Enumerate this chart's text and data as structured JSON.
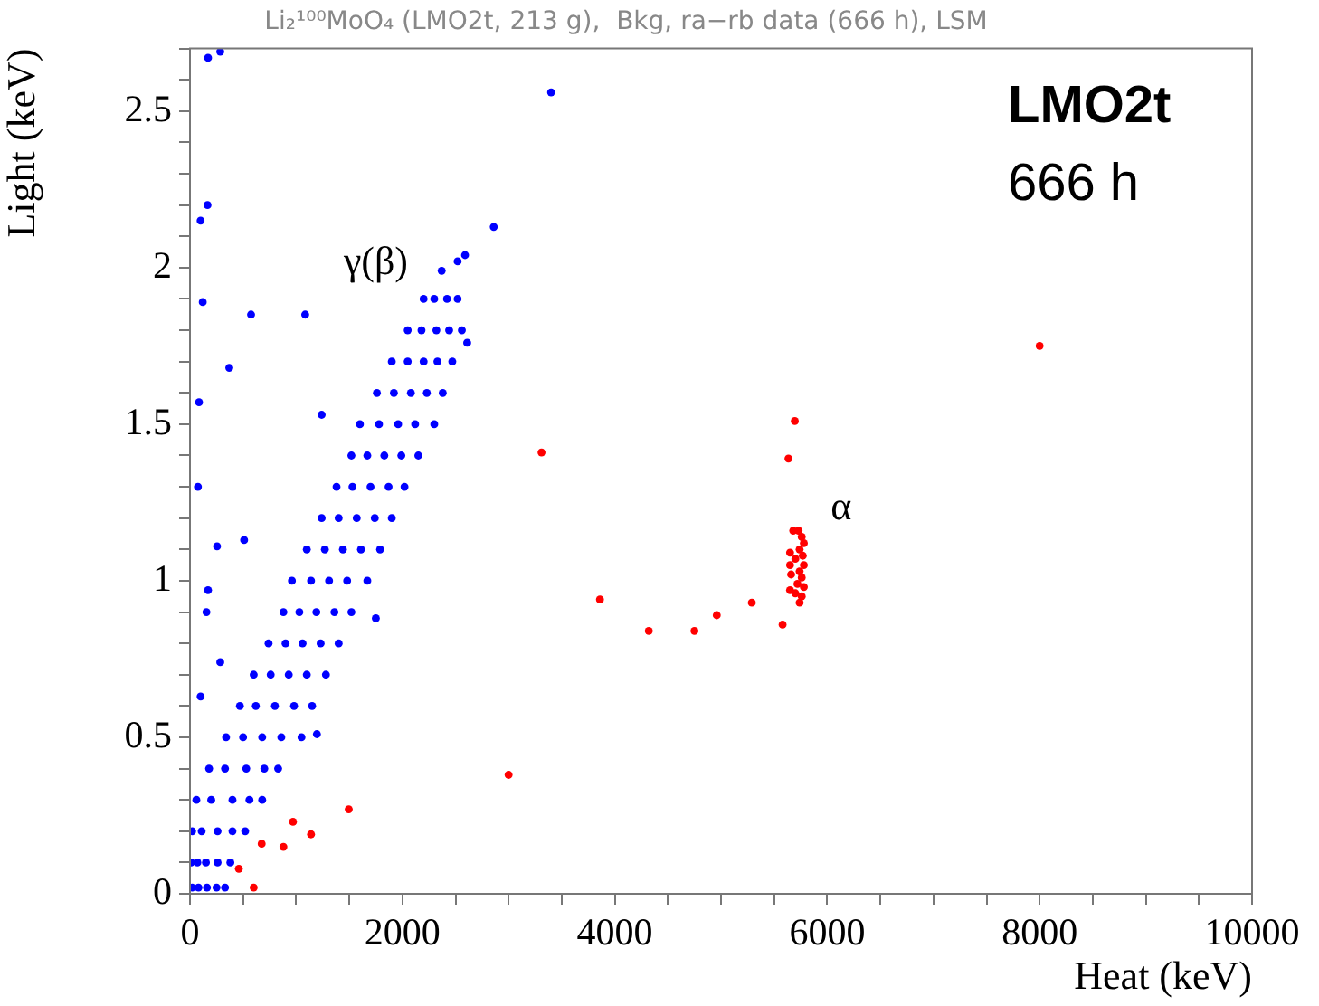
{
  "chart_data": {
    "type": "scatter",
    "title": "Li₂¹⁰⁰MoO₄ (LMO2t, 213 g),  Bkg, ra−rb data (666 h), LSM",
    "xlabel": "Heat (keV)",
    "ylabel": "Light (keV)",
    "xlim": [
      0,
      10000
    ],
    "ylim": [
      0,
      2.7
    ],
    "xticks": [
      0,
      {
        "value": 500,
        "label": null
      },
      {
        "value": 1000,
        "label": null
      },
      {
        "value": 1500,
        "label": null
      },
      2000,
      {
        "value": 2500,
        "label": null
      },
      {
        "value": 3000,
        "label": null
      },
      {
        "value": 3500,
        "label": null
      },
      4000,
      {
        "value": 4500,
        "label": null
      },
      {
        "value": 5000,
        "label": null
      },
      {
        "value": 5500,
        "label": null
      },
      6000,
      {
        "value": 6500,
        "label": null
      },
      {
        "value": 7000,
        "label": null
      },
      {
        "value": 7500,
        "label": null
      },
      8000,
      {
        "value": 8500,
        "label": null
      },
      {
        "value": 9000,
        "label": null
      },
      {
        "value": 9500,
        "label": null
      },
      10000
    ],
    "yticks": [
      0,
      {
        "value": 0.1,
        "label": null
      },
      {
        "value": 0.2,
        "label": null
      },
      {
        "value": 0.3,
        "label": null
      },
      {
        "value": 0.4,
        "label": null
      },
      0.5,
      {
        "value": 0.6,
        "label": null
      },
      {
        "value": 0.7,
        "label": null
      },
      {
        "value": 0.8,
        "label": null
      },
      {
        "value": 0.9,
        "label": null
      },
      1,
      {
        "value": 1.1,
        "label": null
      },
      {
        "value": 1.2,
        "label": null
      },
      {
        "value": 1.3,
        "label": null
      },
      {
        "value": 1.4,
        "label": null
      },
      1.5,
      {
        "value": 1.6,
        "label": null
      },
      {
        "value": 1.7,
        "label": null
      },
      {
        "value": 1.8,
        "label": null
      },
      {
        "value": 1.9,
        "label": null
      },
      2,
      {
        "value": 2.1,
        "label": null
      },
      {
        "value": 2.2,
        "label": null
      },
      {
        "value": 2.3,
        "label": null
      },
      {
        "value": 2.4,
        "label": null
      },
      2.5,
      {
        "value": 2.6,
        "label": null
      },
      {
        "value": 2.7,
        "label": null
      }
    ],
    "grid": false,
    "legend": false,
    "marker": "circle",
    "series": [
      {
        "color": "#0000ff",
        "x": [
          20,
          80,
          160,
          250,
          330,
          10,
          70,
          150,
          260,
          380,
          20,
          110,
          260,
          400,
          520,
          60,
          200,
          400,
          560,
          680,
          180,
          330,
          530,
          700,
          830,
          340,
          500,
          680,
          860,
          1050,
          470,
          620,
          800,
          980,
          1150,
          600,
          760,
          930,
          1100,
          1280,
          740,
          900,
          1060,
          1230,
          1400,
          880,
          1030,
          1190,
          1360,
          1520,
          960,
          1140,
          1310,
          1480,
          1670,
          1100,
          1270,
          1440,
          1610,
          1790,
          1240,
          1400,
          1570,
          1740,
          1900,
          1380,
          1530,
          1700,
          1870,
          2020,
          1520,
          1670,
          1830,
          1990,
          2150,
          1600,
          1780,
          1960,
          2120,
          2300,
          1760,
          1920,
          2080,
          2230,
          2380,
          1900,
          2050,
          2200,
          2330,
          2470,
          2050,
          2180,
          2320,
          2440,
          2560,
          2200,
          2300,
          2420,
          2520,
          2590,
          2520,
          2370,
          2610,
          170,
          285,
          3400,
          165,
          100,
          2860,
          120,
          575,
          1085,
          370,
          85,
          1240,
          75,
          255,
          510,
          170,
          155,
          1750,
          285,
          100,
          1195
        ],
        "values": [
          0.02,
          0.02,
          0.02,
          0.02,
          0.02,
          0.1,
          0.1,
          0.1,
          0.1,
          0.1,
          0.2,
          0.2,
          0.2,
          0.2,
          0.2,
          0.3,
          0.3,
          0.3,
          0.3,
          0.3,
          0.4,
          0.4,
          0.4,
          0.4,
          0.4,
          0.5,
          0.5,
          0.5,
          0.5,
          0.5,
          0.6,
          0.6,
          0.6,
          0.6,
          0.6,
          0.7,
          0.7,
          0.7,
          0.7,
          0.7,
          0.8,
          0.8,
          0.8,
          0.8,
          0.8,
          0.9,
          0.9,
          0.9,
          0.9,
          0.9,
          1.0,
          1.0,
          1.0,
          1.0,
          1.0,
          1.1,
          1.1,
          1.1,
          1.1,
          1.1,
          1.2,
          1.2,
          1.2,
          1.2,
          1.2,
          1.3,
          1.3,
          1.3,
          1.3,
          1.3,
          1.4,
          1.4,
          1.4,
          1.4,
          1.4,
          1.5,
          1.5,
          1.5,
          1.5,
          1.5,
          1.6,
          1.6,
          1.6,
          1.6,
          1.6,
          1.7,
          1.7,
          1.7,
          1.7,
          1.7,
          1.8,
          1.8,
          1.8,
          1.8,
          1.8,
          1.9,
          1.9,
          1.9,
          1.9,
          2.04,
          2.02,
          1.99,
          1.76,
          2.67,
          2.69,
          2.56,
          2.2,
          2.15,
          2.13,
          1.89,
          1.85,
          1.85,
          1.68,
          1.57,
          1.53,
          1.3,
          1.11,
          1.13,
          0.97,
          0.9,
          0.88,
          0.74,
          0.63,
          0.51
        ]
      },
      {
        "color": "#ff0000",
        "x": [
          8000,
          5695,
          5635,
          3310,
          3860,
          4320,
          4750,
          4960,
          5290,
          5580,
          3000,
          1495,
          970,
          1140,
          675,
          880,
          460,
          600,
          5680,
          5730,
          5760,
          5780,
          5740,
          5650,
          5770,
          5700,
          5650,
          5780,
          5740,
          5660,
          5760,
          5720,
          5780,
          5650,
          5700,
          5760,
          5740
        ],
        "values": [
          1.75,
          1.51,
          1.39,
          1.41,
          0.94,
          0.84,
          0.84,
          0.89,
          0.93,
          0.86,
          0.38,
          0.27,
          0.23,
          0.19,
          0.16,
          0.15,
          0.08,
          0.02,
          1.16,
          1.16,
          1.14,
          1.12,
          1.1,
          1.09,
          1.08,
          1.07,
          1.05,
          1.05,
          1.03,
          1.02,
          1.01,
          0.99,
          0.98,
          0.97,
          0.96,
          0.95,
          0.93
        ]
      }
    ],
    "annotations": [
      "γ(β)",
      "α",
      "LMO2t",
      "666 h"
    ]
  }
}
